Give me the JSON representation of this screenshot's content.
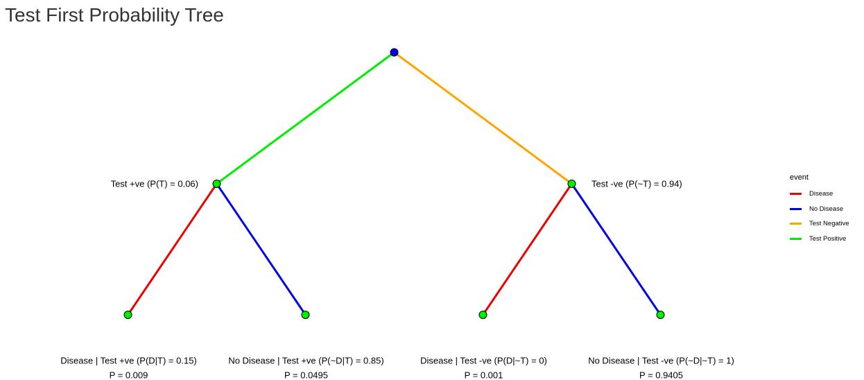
{
  "header": {
    "title": "Test First Probability Tree"
  },
  "tree": {
    "root": {
      "fill": "#0000ee"
    },
    "level1": [
      {
        "id": "test-positive",
        "label": "Test +ve (P(T) = 0.06)",
        "edge_event": "Test Positive"
      },
      {
        "id": "test-negative",
        "label": "Test -ve (P(~T) = 0.94)",
        "edge_event": "Test Negative"
      }
    ],
    "leaves": [
      {
        "id": "disease-given-pos",
        "parent": 0,
        "edge_event": "Disease",
        "label": "Disease | Test +ve (P(D|T) = 0.15)",
        "prob": "P = 0.009"
      },
      {
        "id": "no-disease-given-pos",
        "parent": 0,
        "edge_event": "No Disease",
        "label": "No Disease | Test +ve (P(~D|T) = 0.85)",
        "prob": "P = 0.0495"
      },
      {
        "id": "disease-given-neg",
        "parent": 1,
        "edge_event": "Disease",
        "label": "Disease | Test -ve (P(D|~T) = 0)",
        "prob": "P = 0.001"
      },
      {
        "id": "no-disease-given-neg",
        "parent": 1,
        "edge_event": "No Disease",
        "label": "No Disease | Test -ve (P(~D|~T) = 1)",
        "prob": "P = 0.9405"
      }
    ],
    "node_fill": "#00ee00"
  },
  "legend": {
    "title": "event",
    "items": [
      {
        "label": "Disease",
        "color": "#ee0000"
      },
      {
        "label": "No Disease",
        "color": "#0000ee"
      },
      {
        "label": "Test Negative",
        "color": "#ffa500"
      },
      {
        "label": "Test Positive",
        "color": "#00ee00"
      }
    ]
  }
}
